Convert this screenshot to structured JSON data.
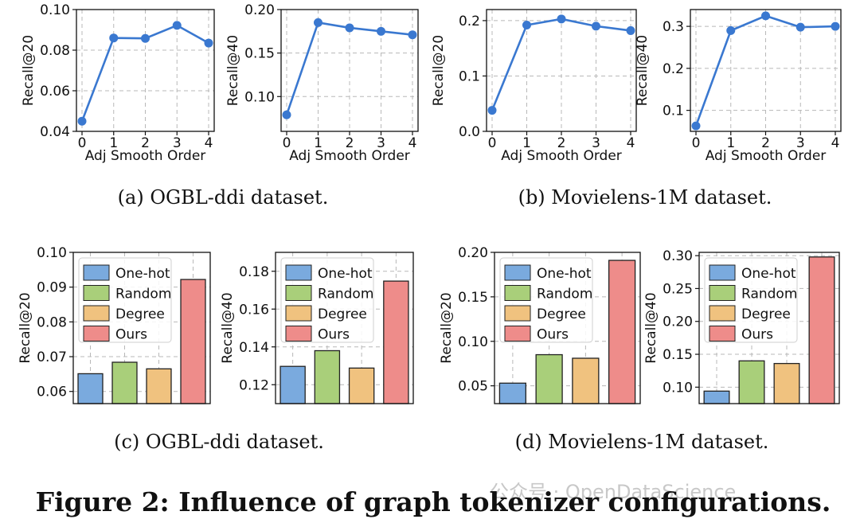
{
  "figure_title": "Figure 2: Influence of graph tokenizer configurations.",
  "watermark": "公众号 · OpenDataScience",
  "captions": [
    "(a)  OGBL-ddi dataset.",
    "(b)  Movielens-1M dataset.",
    "(c)  OGBL-ddi dataset.",
    "(d)  Movielens-1M dataset."
  ],
  "colors": {
    "line": "#3a78d0",
    "grid": "#b8b8b8",
    "bars": [
      "#7aaade",
      "#a9cf7a",
      "#f0c27f",
      "#ee8c8a"
    ]
  },
  "chart_data": [
    {
      "type": "line",
      "panel": "a-left",
      "x": [
        0,
        1,
        2,
        3,
        4
      ],
      "values": [
        0.045,
        0.086,
        0.0858,
        0.0922,
        0.0835
      ],
      "xlabel": "Adj Smooth Order",
      "ylabel": "Recall@20",
      "ylim": [
        0.04,
        0.1
      ],
      "yticks": [
        0.04,
        0.06,
        0.08,
        0.1
      ],
      "ytick_labels": [
        "0.04",
        "0.06",
        "0.08",
        "0.10"
      ],
      "xtick_labels": [
        "0",
        "1",
        "2",
        "3",
        "4"
      ],
      "grid": true
    },
    {
      "type": "line",
      "panel": "a-right",
      "x": [
        0,
        1,
        2,
        3,
        4
      ],
      "values": [
        0.079,
        0.185,
        0.179,
        0.175,
        0.171
      ],
      "xlabel": "Adj Smooth Order",
      "ylabel": "Recall@40",
      "ylim": [
        0.06,
        0.2
      ],
      "yticks": [
        0.1,
        0.15,
        0.2
      ],
      "ytick_labels": [
        "0.10",
        "0.15",
        "0.20"
      ],
      "xtick_labels": [
        "0",
        "1",
        "2",
        "3",
        "4"
      ],
      "grid": true
    },
    {
      "type": "line",
      "panel": "b-left",
      "x": [
        0,
        1,
        2,
        3,
        4
      ],
      "values": [
        0.038,
        0.192,
        0.203,
        0.19,
        0.182
      ],
      "xlabel": "Adj Smooth Order",
      "ylabel": "Recall@20",
      "ylim": [
        0.0,
        0.22
      ],
      "yticks": [
        0.0,
        0.1,
        0.2
      ],
      "ytick_labels": [
        "0.0",
        "0.1",
        "0.2"
      ],
      "xtick_labels": [
        "0",
        "1",
        "2",
        "3",
        "4"
      ],
      "grid": true
    },
    {
      "type": "line",
      "panel": "b-right",
      "x": [
        0,
        1,
        2,
        3,
        4
      ],
      "values": [
        0.063,
        0.29,
        0.325,
        0.298,
        0.3
      ],
      "xlabel": "Adj Smooth Order",
      "ylabel": "Recall@40",
      "ylim": [
        0.05,
        0.34
      ],
      "yticks": [
        0.1,
        0.2,
        0.3
      ],
      "ytick_labels": [
        "0.1",
        "0.2",
        "0.3"
      ],
      "xtick_labels": [
        "0",
        "1",
        "2",
        "3",
        "4"
      ],
      "grid": true
    },
    {
      "type": "bar",
      "panel": "c-left",
      "categories": [
        "One-hot",
        "Random",
        "Degree",
        "Ours"
      ],
      "values": [
        0.0651,
        0.0684,
        0.0665,
        0.0922
      ],
      "xlabel": "",
      "ylabel": "Recall@20",
      "ylim": [
        0.0565,
        0.1
      ],
      "yticks": [
        0.06,
        0.07,
        0.08,
        0.09,
        0.1
      ],
      "ytick_labels": [
        "0.06",
        "0.07",
        "0.08",
        "0.09",
        "0.10"
      ],
      "legend": "top-left",
      "grid": true
    },
    {
      "type": "bar",
      "panel": "c-right",
      "categories": [
        "One-hot",
        "Random",
        "Degree",
        "Ours"
      ],
      "values": [
        0.1297,
        0.138,
        0.1288,
        0.1748
      ],
      "xlabel": "",
      "ylabel": "Recall@40",
      "ylim": [
        0.11,
        0.19
      ],
      "yticks": [
        0.12,
        0.14,
        0.16,
        0.18
      ],
      "ytick_labels": [
        "0.12",
        "0.14",
        "0.16",
        "0.18"
      ],
      "legend": "top-left",
      "grid": true
    },
    {
      "type": "bar",
      "panel": "d-left",
      "categories": [
        "One-hot",
        "Random",
        "Degree",
        "Ours"
      ],
      "values": [
        0.053,
        0.085,
        0.081,
        0.191
      ],
      "xlabel": "",
      "ylabel": "Recall@20",
      "ylim": [
        0.03,
        0.2
      ],
      "yticks": [
        0.05,
        0.1,
        0.15,
        0.2
      ],
      "ytick_labels": [
        "0.05",
        "0.10",
        "0.15",
        "0.20"
      ],
      "legend": "top-left",
      "grid": true
    },
    {
      "type": "bar",
      "panel": "d-right",
      "categories": [
        "One-hot",
        "Random",
        "Degree",
        "Ours"
      ],
      "values": [
        0.094,
        0.14,
        0.136,
        0.298
      ],
      "xlabel": "",
      "ylabel": "Recall@40",
      "ylim": [
        0.075,
        0.305
      ],
      "yticks": [
        0.1,
        0.15,
        0.2,
        0.25,
        0.3
      ],
      "ytick_labels": [
        "0.10",
        "0.15",
        "0.20",
        "0.25",
        "0.30"
      ],
      "legend": "top-left",
      "grid": true
    }
  ]
}
